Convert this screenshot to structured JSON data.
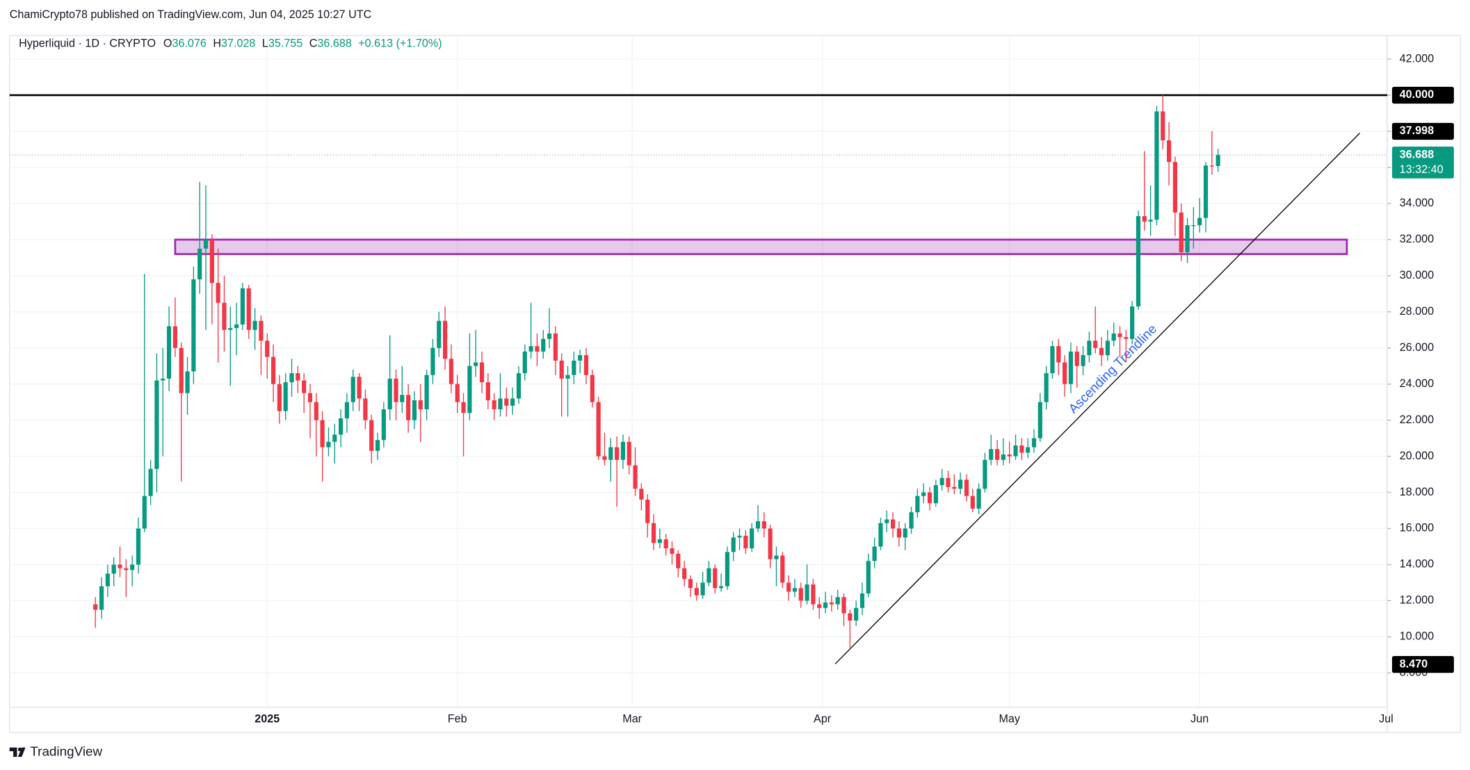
{
  "chart_data": {
    "type": "candlestick",
    "header": "ChamiCrypto78 published on TradingView.com, Jun 04, 2025 10:27 UTC",
    "symbol": "Hyperliquid · 1D · CRYPTO",
    "legend": [
      [
        "O",
        "36.076"
      ],
      [
        "H",
        "37.028"
      ],
      [
        "L",
        "35.755"
      ],
      [
        "C",
        "36.688"
      ]
    ],
    "change": "+0.613 (+1.70%)",
    "footer": "TradingView",
    "up_color": "#089981",
    "down_color": "#f23645",
    "xlim": [
      -14,
      210.6
    ],
    "xticks": [
      {
        "value": 28,
        "label": "2025"
      },
      {
        "value": 59,
        "label": "Feb"
      },
      {
        "value": 87.5,
        "label": "Mar"
      },
      {
        "value": 118.5,
        "label": "Apr"
      },
      {
        "value": 149,
        "label": "May"
      },
      {
        "value": 180,
        "label": "Jun"
      },
      {
        "value": 210.4,
        "label": "Jul"
      }
    ],
    "ylim": [
      6.1,
      43.3
    ],
    "yticks": [
      {
        "value": 8,
        "label": "8.000"
      },
      {
        "value": 10,
        "label": "10.000"
      },
      {
        "value": 12,
        "label": "12.000"
      },
      {
        "value": 14,
        "label": "14.000"
      },
      {
        "value": 16,
        "label": "16.000"
      },
      {
        "value": 18,
        "label": "18.000"
      },
      {
        "value": 20,
        "label": "20.000"
      },
      {
        "value": 22,
        "label": "22.000"
      },
      {
        "value": 24,
        "label": "24.000"
      },
      {
        "value": 26,
        "label": "26.000"
      },
      {
        "value": 28,
        "label": "28.000"
      },
      {
        "value": 30,
        "label": "30.000"
      },
      {
        "value": 32,
        "label": "32.000"
      },
      {
        "value": 34,
        "label": "34.000"
      },
      {
        "value": 36,
        "label": "36.000"
      },
      {
        "value": 38,
        "label": "38.000"
      },
      {
        "value": 40,
        "label": "40.000"
      },
      {
        "value": 42,
        "label": "42.000"
      }
    ],
    "grid": true,
    "level": 40,
    "zone": {
      "x": [
        13,
        204
      ],
      "y": [
        31.2,
        32.0
      ],
      "color": "#9c27b0"
    },
    "trendline": {
      "x": [
        120.6,
        206.1
      ],
      "y": [
        8.5,
        37.9
      ],
      "label": "Ascending Trendline"
    },
    "price_labels": [
      {
        "value": 40,
        "label": "40.000",
        "color": "#000000"
      },
      {
        "value": 37.998,
        "label": "37.998",
        "color": "#000000"
      },
      {
        "value": 36.688,
        "label": "36.688",
        "countdown": "13:32:40",
        "color": "#089981"
      },
      {
        "value": 8.47,
        "label": "8.470",
        "color": "#000000"
      }
    ],
    "ohlc": [
      [
        11.8,
        12.2,
        10.5,
        11.5
      ],
      [
        11.5,
        13.3,
        11.0,
        12.8
      ],
      [
        12.8,
        14.0,
        12.2,
        13.5
      ],
      [
        13.5,
        14.4,
        12.8,
        14.0
      ],
      [
        14.0,
        15.0,
        13.3,
        13.8
      ],
      [
        13.8,
        14.3,
        12.2,
        13.7
      ],
      [
        13.7,
        14.5,
        12.8,
        14.0
      ],
      [
        14.0,
        16.6,
        13.5,
        16.0
      ],
      [
        16.0,
        30.1,
        15.8,
        17.8
      ],
      [
        17.8,
        19.8,
        17.3,
        19.3
      ],
      [
        19.3,
        25.7,
        18.0,
        24.2
      ],
      [
        24.2,
        26.0,
        20.0,
        24.3
      ],
      [
        24.3,
        28.3,
        23.6,
        27.2
      ],
      [
        27.2,
        28.8,
        25.5,
        26.0
      ],
      [
        26.0,
        26.3,
        18.6,
        23.5
      ],
      [
        23.5,
        25.5,
        22.3,
        24.7
      ],
      [
        24.7,
        30.5,
        24.0,
        29.8
      ],
      [
        29.8,
        35.2,
        29.0,
        31.5
      ],
      [
        31.5,
        35.0,
        27.0,
        32.0
      ],
      [
        32.0,
        32.3,
        27.3,
        29.6
      ],
      [
        29.6,
        31.5,
        25.2,
        28.5
      ],
      [
        28.5,
        30.0,
        25.8,
        27.0
      ],
      [
        27.0,
        28.3,
        23.9,
        27.1
      ],
      [
        27.1,
        28.5,
        25.6,
        27.3
      ],
      [
        27.3,
        29.6,
        27.0,
        29.3
      ],
      [
        29.3,
        29.5,
        26.5,
        27.0
      ],
      [
        27.0,
        28.2,
        25.9,
        27.5
      ],
      [
        27.5,
        27.8,
        24.5,
        26.4
      ],
      [
        26.4,
        26.8,
        24.3,
        25.5
      ],
      [
        25.5,
        26.2,
        23.0,
        24.0
      ],
      [
        24.0,
        24.5,
        21.8,
        22.5
      ],
      [
        22.5,
        24.6,
        22.0,
        24.1
      ],
      [
        24.1,
        25.4,
        23.3,
        24.6
      ],
      [
        24.6,
        25.0,
        23.5,
        24.2
      ],
      [
        24.2,
        24.6,
        22.4,
        23.5
      ],
      [
        23.5,
        24.0,
        21.0,
        23.0
      ],
      [
        23.0,
        23.5,
        20.0,
        22.0
      ],
      [
        22.0,
        22.5,
        18.6,
        20.5
      ],
      [
        20.5,
        21.6,
        20.0,
        20.8
      ],
      [
        20.8,
        21.8,
        19.6,
        21.2
      ],
      [
        21.2,
        22.6,
        20.5,
        22.1
      ],
      [
        22.1,
        23.5,
        21.3,
        23.0
      ],
      [
        23.0,
        24.8,
        22.5,
        24.4
      ],
      [
        24.4,
        24.6,
        22.5,
        23.2
      ],
      [
        23.2,
        23.7,
        21.5,
        22.0
      ],
      [
        22.0,
        22.3,
        19.6,
        20.3
      ],
      [
        20.3,
        21.3,
        19.8,
        20.9
      ],
      [
        20.9,
        23.0,
        20.5,
        22.6
      ],
      [
        22.6,
        26.7,
        22.0,
        24.3
      ],
      [
        24.3,
        24.8,
        22.0,
        23.0
      ],
      [
        23.0,
        25.0,
        22.4,
        23.4
      ],
      [
        23.4,
        24.0,
        21.3,
        22.0
      ],
      [
        22.0,
        23.6,
        21.5,
        23.1
      ],
      [
        23.1,
        24.0,
        20.8,
        22.6
      ],
      [
        22.6,
        24.8,
        22.0,
        24.5
      ],
      [
        24.5,
        26.5,
        24.0,
        26.0
      ],
      [
        26.0,
        28.0,
        25.5,
        27.5
      ],
      [
        27.5,
        28.3,
        24.8,
        25.4
      ],
      [
        25.4,
        26.2,
        23.5,
        24.0
      ],
      [
        24.0,
        24.5,
        22.4,
        23.0
      ],
      [
        23.0,
        23.5,
        20.0,
        22.4
      ],
      [
        22.4,
        26.8,
        22.0,
        25.0
      ],
      [
        25.0,
        27.0,
        24.4,
        25.2
      ],
      [
        25.2,
        25.8,
        23.5,
        24.1
      ],
      [
        24.1,
        24.6,
        22.6,
        23.1
      ],
      [
        23.1,
        23.5,
        22.0,
        22.6
      ],
      [
        22.6,
        24.6,
        22.2,
        23.2
      ],
      [
        23.2,
        23.8,
        22.2,
        22.8
      ],
      [
        22.8,
        23.8,
        22.3,
        23.2
      ],
      [
        23.2,
        25.0,
        22.9,
        24.6
      ],
      [
        24.6,
        26.2,
        24.2,
        25.8
      ],
      [
        25.8,
        28.5,
        25.4,
        26.1
      ],
      [
        26.1,
        26.8,
        25.0,
        25.8
      ],
      [
        25.8,
        27.0,
        25.4,
        26.5
      ],
      [
        26.5,
        28.2,
        26.0,
        26.8
      ],
      [
        26.8,
        27.2,
        24.5,
        25.3
      ],
      [
        25.3,
        25.7,
        22.2,
        24.3
      ],
      [
        24.3,
        25.0,
        22.2,
        24.5
      ],
      [
        24.5,
        25.8,
        24.0,
        25.3
      ],
      [
        25.3,
        25.9,
        24.6,
        25.6
      ],
      [
        25.6,
        26.0,
        24.0,
        24.5
      ],
      [
        24.5,
        24.8,
        22.7,
        23.0
      ],
      [
        23.0,
        23.3,
        19.8,
        20.0
      ],
      [
        20.0,
        21.3,
        19.5,
        19.8
      ],
      [
        19.8,
        21.0,
        18.6,
        20.5
      ],
      [
        20.5,
        21.1,
        17.2,
        19.8
      ],
      [
        19.8,
        21.2,
        19.3,
        20.8
      ],
      [
        20.8,
        21.1,
        19.0,
        19.5
      ],
      [
        19.5,
        20.5,
        17.8,
        18.2
      ],
      [
        18.2,
        18.5,
        17.0,
        17.6
      ],
      [
        17.6,
        17.9,
        15.5,
        16.3
      ],
      [
        16.3,
        16.8,
        14.8,
        15.2
      ],
      [
        15.2,
        16.0,
        14.9,
        15.4
      ],
      [
        15.4,
        15.7,
        14.5,
        14.9
      ],
      [
        14.9,
        15.3,
        14.0,
        14.6
      ],
      [
        14.6,
        14.8,
        13.3,
        13.8
      ],
      [
        13.8,
        14.2,
        12.8,
        13.2
      ],
      [
        13.2,
        13.4,
        12.2,
        12.7
      ],
      [
        12.7,
        13.0,
        12.0,
        12.3
      ],
      [
        12.3,
        13.6,
        12.1,
        13.0
      ],
      [
        13.0,
        14.2,
        12.8,
        13.8
      ],
      [
        13.8,
        14.0,
        12.4,
        12.7
      ],
      [
        12.7,
        13.5,
        12.5,
        12.8
      ],
      [
        12.8,
        15.0,
        12.6,
        14.7
      ],
      [
        14.7,
        15.8,
        14.2,
        15.5
      ],
      [
        15.5,
        16.0,
        14.8,
        15.6
      ],
      [
        15.6,
        15.9,
        14.6,
        14.9
      ],
      [
        14.9,
        16.3,
        14.7,
        16.0
      ],
      [
        16.0,
        17.3,
        15.8,
        16.4
      ],
      [
        16.4,
        16.9,
        15.5,
        16.0
      ],
      [
        16.0,
        16.2,
        13.8,
        14.3
      ],
      [
        14.3,
        15.0,
        12.8,
        14.5
      ],
      [
        14.5,
        14.7,
        12.7,
        13.0
      ],
      [
        13.0,
        13.4,
        12.0,
        12.5
      ],
      [
        12.5,
        13.2,
        12.2,
        12.7
      ],
      [
        12.7,
        13.0,
        11.6,
        12.0
      ],
      [
        12.0,
        14.0,
        11.8,
        12.9
      ],
      [
        12.9,
        13.2,
        11.5,
        11.8
      ],
      [
        11.8,
        12.2,
        11.0,
        11.6
      ],
      [
        11.6,
        12.5,
        11.3,
        11.9
      ],
      [
        11.9,
        12.3,
        11.4,
        11.8
      ],
      [
        11.8,
        12.6,
        11.5,
        12.2
      ],
      [
        12.2,
        12.4,
        10.6,
        11.3
      ],
      [
        11.3,
        11.5,
        9.4,
        10.9
      ],
      [
        10.9,
        12.0,
        10.6,
        11.6
      ],
      [
        11.6,
        13.0,
        11.2,
        12.4
      ],
      [
        12.4,
        14.6,
        12.2,
        14.2
      ],
      [
        14.2,
        15.5,
        13.8,
        15.0
      ],
      [
        15.0,
        16.6,
        14.8,
        16.3
      ],
      [
        16.3,
        17.0,
        15.8,
        16.5
      ],
      [
        16.5,
        16.9,
        15.5,
        16.0
      ],
      [
        16.0,
        16.4,
        15.0,
        15.5
      ],
      [
        15.5,
        16.3,
        14.8,
        16.0
      ],
      [
        16.0,
        17.2,
        15.7,
        16.9
      ],
      [
        16.9,
        18.2,
        16.6,
        17.8
      ],
      [
        17.8,
        18.5,
        17.4,
        18.0
      ],
      [
        18.0,
        18.3,
        17.0,
        17.4
      ],
      [
        17.4,
        18.7,
        17.2,
        18.4
      ],
      [
        18.4,
        19.3,
        18.1,
        18.8
      ],
      [
        18.8,
        19.2,
        18.0,
        18.3
      ],
      [
        18.3,
        19.0,
        17.9,
        18.2
      ],
      [
        18.2,
        19.1,
        17.9,
        18.7
      ],
      [
        18.7,
        19.0,
        17.5,
        17.8
      ],
      [
        17.8,
        18.2,
        16.9,
        17.1
      ],
      [
        17.1,
        18.5,
        16.8,
        18.2
      ],
      [
        18.2,
        20.2,
        18.0,
        19.8
      ],
      [
        19.8,
        21.2,
        19.5,
        20.4
      ],
      [
        20.4,
        20.9,
        19.5,
        19.8
      ],
      [
        19.8,
        21.0,
        19.5,
        20.1
      ],
      [
        20.1,
        20.8,
        19.6,
        20.0
      ],
      [
        20.0,
        21.2,
        19.8,
        20.6
      ],
      [
        20.6,
        21.0,
        19.8,
        20.2
      ],
      [
        20.2,
        21.0,
        19.9,
        20.5
      ],
      [
        20.5,
        21.5,
        20.2,
        21.0
      ],
      [
        21.0,
        23.5,
        20.8,
        23.0
      ],
      [
        23.0,
        25.0,
        22.6,
        24.6
      ],
      [
        24.6,
        26.4,
        24.3,
        26.1
      ],
      [
        26.1,
        26.5,
        24.5,
        25.2
      ],
      [
        25.2,
        25.6,
        23.3,
        24.0
      ],
      [
        24.0,
        26.3,
        23.5,
        25.8
      ],
      [
        25.8,
        26.1,
        23.8,
        25.0
      ],
      [
        25.0,
        26.1,
        24.5,
        25.6
      ],
      [
        25.6,
        26.9,
        25.2,
        26.4
      ],
      [
        26.4,
        28.3,
        25.7,
        26.0
      ],
      [
        26.0,
        26.6,
        25.0,
        25.6
      ],
      [
        25.6,
        27.0,
        25.3,
        26.4
      ],
      [
        26.4,
        27.4,
        26.1,
        26.8
      ],
      [
        26.8,
        27.2,
        25.5,
        26.6
      ],
      [
        26.6,
        27.0,
        25.2,
        26.5
      ],
      [
        26.5,
        28.6,
        26.2,
        28.3
      ],
      [
        28.3,
        33.6,
        28.1,
        33.3
      ],
      [
        33.3,
        36.9,
        32.5,
        33.0
      ],
      [
        33.0,
        35.0,
        32.2,
        33.1
      ],
      [
        33.1,
        39.4,
        32.8,
        39.1
      ],
      [
        39.1,
        40.0,
        37.0,
        37.5
      ],
      [
        37.5,
        38.5,
        35.0,
        36.3
      ],
      [
        36.3,
        36.6,
        32.2,
        33.5
      ],
      [
        33.5,
        34.0,
        30.8,
        31.3
      ],
      [
        31.3,
        33.2,
        30.7,
        32.8
      ],
      [
        32.8,
        33.8,
        31.5,
        32.8
      ],
      [
        32.8,
        34.3,
        32.4,
        33.2
      ],
      [
        33.2,
        36.3,
        32.4,
        36.1
      ],
      [
        36.1,
        38.0,
        35.6,
        36.076
      ],
      [
        36.076,
        37.028,
        35.755,
        36.688
      ]
    ]
  }
}
